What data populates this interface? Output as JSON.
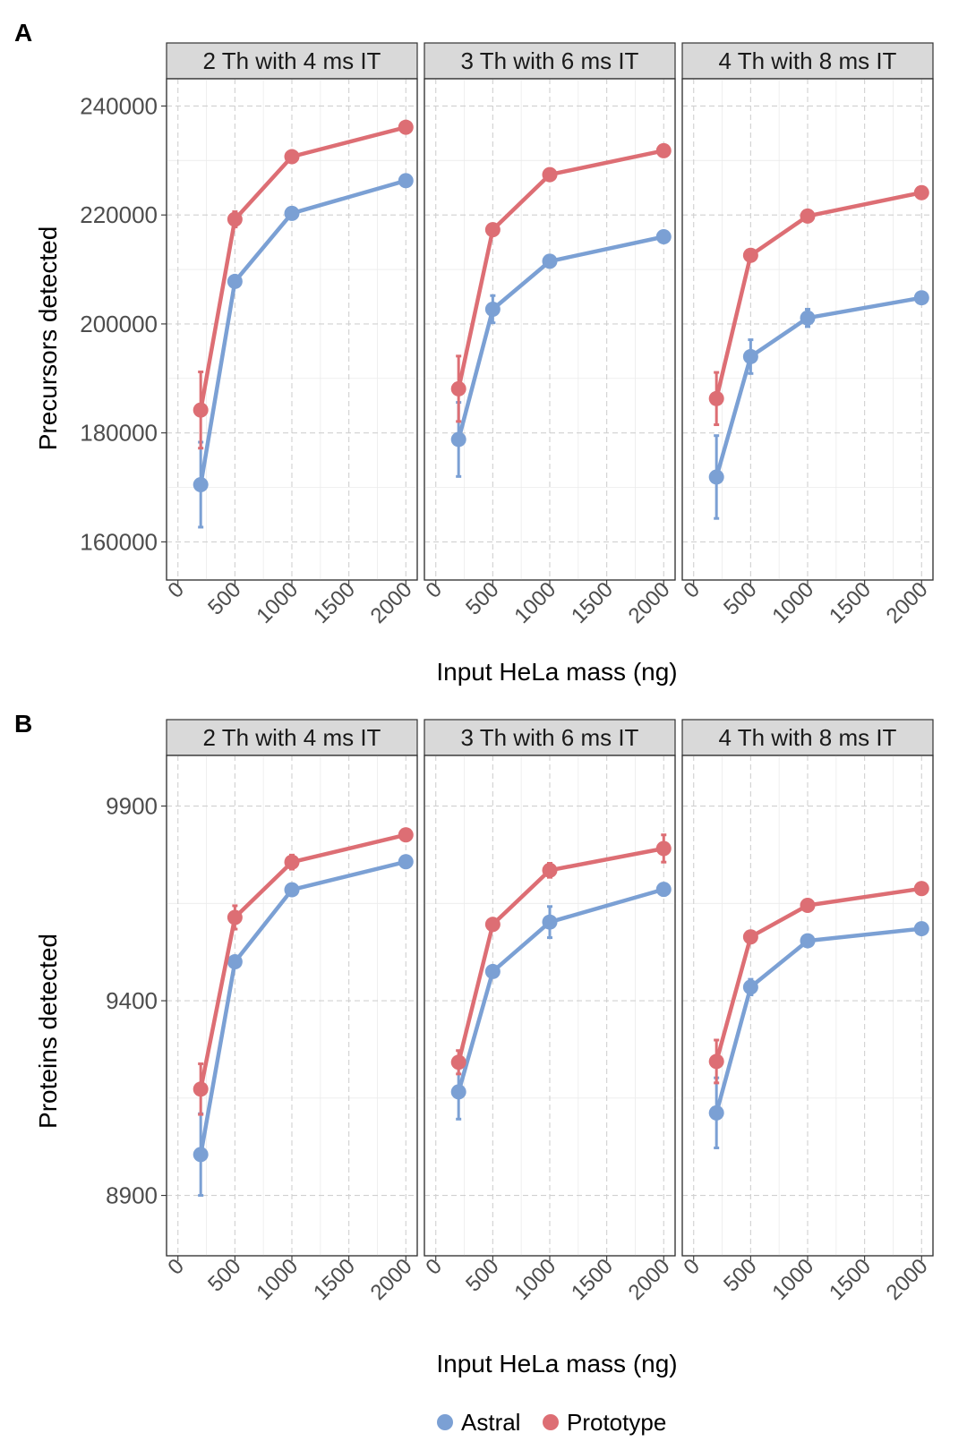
{
  "colors": {
    "Astral": "#7ba0d4",
    "Prototype": "#dd6e74"
  },
  "legend": {
    "items": [
      "Astral",
      "Prototype"
    ]
  },
  "chart_data": [
    {
      "panel_label": "A",
      "type": "line",
      "ylabel": "Precursors detected",
      "xlabel": "Input HeLa mass (ng)",
      "ylim": [
        153000,
        245000
      ],
      "yticks": [
        160000,
        180000,
        200000,
        220000,
        240000
      ],
      "xlim": [
        -100,
        2100
      ],
      "xticks": [
        0,
        500,
        1000,
        1500,
        2000
      ],
      "x": [
        200,
        500,
        1000,
        2000
      ],
      "facets": [
        {
          "title": "2 Th with 4 ms IT",
          "series": [
            {
              "name": "Astral",
              "values": [
                170500,
                207800,
                220300,
                226300
              ],
              "errors": [
                7800,
                700,
                600,
                500
              ]
            },
            {
              "name": "Prototype",
              "values": [
                184200,
                219200,
                230700,
                236100
              ],
              "errors": [
                7000,
                1400,
                600,
                500
              ]
            }
          ]
        },
        {
          "title": "3 Th with 6 ms IT",
          "series": [
            {
              "name": "Astral",
              "values": [
                178800,
                202700,
                211500,
                216000
              ],
              "errors": [
                6800,
                2500,
                800,
                500
              ]
            },
            {
              "name": "Prototype",
              "values": [
                188100,
                217300,
                227400,
                231800
              ],
              "errors": [
                6000,
                800,
                500,
                500
              ]
            }
          ]
        },
        {
          "title": "4 Th with 8 ms IT",
          "series": [
            {
              "name": "Astral",
              "values": [
                171900,
                194000,
                201100,
                204800
              ],
              "errors": [
                7600,
                3100,
                1600,
                800
              ]
            },
            {
              "name": "Prototype",
              "values": [
                186300,
                212600,
                219800,
                224100
              ],
              "errors": [
                4800,
                900,
                500,
                500
              ]
            }
          ]
        }
      ]
    },
    {
      "panel_label": "B",
      "type": "line",
      "ylabel": "Proteins detected",
      "xlabel": "Input HeLa mass (ng)",
      "ylim": [
        8745,
        10030
      ],
      "yticks": [
        8900,
        9400,
        9900
      ],
      "xlim": [
        -100,
        2100
      ],
      "xticks": [
        0,
        500,
        1000,
        1500,
        2000
      ],
      "x": [
        200,
        500,
        1000,
        2000
      ],
      "facets": [
        {
          "title": "2 Th with 4 ms IT",
          "series": [
            {
              "name": "Astral",
              "values": [
                9005,
                9500,
                9685,
                9757
              ],
              "errors": [
                105,
                15,
                10,
                10
              ]
            },
            {
              "name": "Prototype",
              "values": [
                9173,
                9614,
                9756,
                9826
              ],
              "errors": [
                65,
                30,
                18,
                10
              ]
            }
          ]
        },
        {
          "title": "3 Th with 6 ms IT",
          "series": [
            {
              "name": "Astral",
              "values": [
                9166,
                9475,
                9602,
                9686
              ],
              "errors": [
                70,
                12,
                40,
                15
              ]
            },
            {
              "name": "Prototype",
              "values": [
                9242,
                9596,
                9735,
                9791
              ],
              "errors": [
                30,
                15,
                18,
                35
              ]
            }
          ]
        },
        {
          "title": "4 Th with 8 ms IT",
          "series": [
            {
              "name": "Astral",
              "values": [
                9112,
                9435,
                9554,
                9585
              ],
              "errors": [
                90,
                20,
                12,
                10
              ]
            },
            {
              "name": "Prototype",
              "values": [
                9244,
                9564,
                9645,
                9688
              ],
              "errors": [
                55,
                12,
                10,
                10
              ]
            }
          ]
        }
      ]
    }
  ]
}
